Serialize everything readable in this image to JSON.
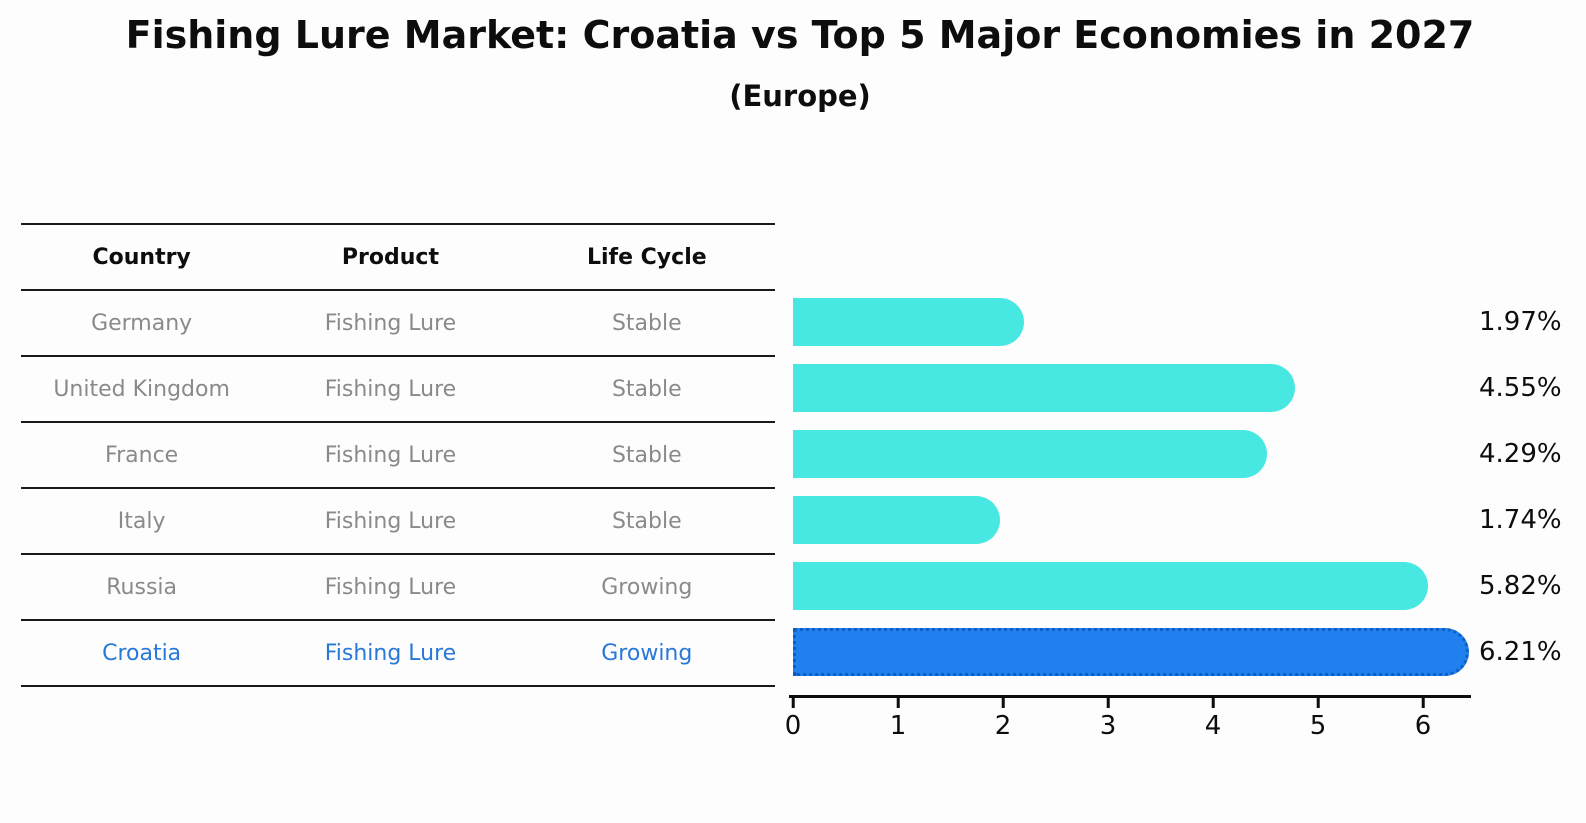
{
  "title": "Fishing Lure Market: Croatia vs Top 5 Major Economies in 2027",
  "subtitle": "(Europe)",
  "table": {
    "headers": [
      "Country",
      "Product",
      "Life Cycle"
    ],
    "rows": [
      {
        "country": "Germany",
        "product": "Fishing Lure",
        "life_cycle": "Stable",
        "highlight": false
      },
      {
        "country": "United Kingdom",
        "product": "Fishing Lure",
        "life_cycle": "Stable",
        "highlight": false
      },
      {
        "country": "France",
        "product": "Fishing Lure",
        "life_cycle": "Stable",
        "highlight": false
      },
      {
        "country": "Italy",
        "product": "Fishing Lure",
        "life_cycle": "Stable",
        "highlight": false
      },
      {
        "country": "Russia",
        "product": "Fishing Lure",
        "life_cycle": "Growing",
        "highlight": false
      },
      {
        "country": "Croatia",
        "product": "Fishing Lure",
        "life_cycle": "Growing",
        "highlight": true
      }
    ]
  },
  "chart_data": {
    "type": "bar",
    "orientation": "horizontal",
    "title": "Fishing Lure Market: Croatia vs Top 5 Major Economies in 2027",
    "subtitle": "(Europe)",
    "categories": [
      "Germany",
      "United Kingdom",
      "France",
      "Italy",
      "Russia",
      "Croatia"
    ],
    "values": [
      1.97,
      4.55,
      4.29,
      1.74,
      5.82,
      6.21
    ],
    "value_labels": [
      "1.97%",
      "4.55%",
      "4.29%",
      "1.74%",
      "5.82%",
      "6.21%"
    ],
    "xlabel": "",
    "ylabel": "",
    "xlim": [
      0,
      6.5
    ],
    "x_ticks": [
      0,
      1,
      2,
      3,
      4,
      5,
      6
    ],
    "grid": false,
    "legend": false,
    "bar_color": "#47e8e2",
    "highlight_color": "#1f80ee",
    "highlight_border_color": "#0e5ec6",
    "highlight_index": 5,
    "highlight_text_color": "#2878d8"
  },
  "colors": {
    "background": "#fdfdfd",
    "text": "#0d0d0d",
    "muted_text": "#8a8a8a",
    "table_line": "#1a1a1a"
  }
}
